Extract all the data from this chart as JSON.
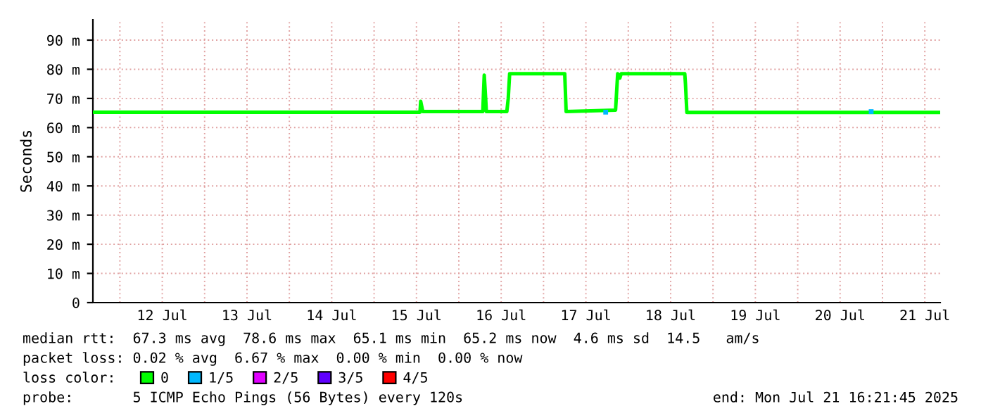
{
  "chart_data": {
    "type": "line",
    "ylabel": "Seconds",
    "x": [
      "2025-07-11T16:21",
      "2025-07-15T13:00",
      "2025-07-15T13:12",
      "2025-07-15T13:48",
      "2025-07-16T06:48",
      "2025-07-16T07:00",
      "2025-07-16T07:12",
      "2025-07-16T07:36",
      "2025-07-16T07:48",
      "2025-07-16T13:36",
      "2025-07-16T14:00",
      "2025-07-16T14:24",
      "2025-07-17T06:00",
      "2025-07-17T06:24",
      "2025-07-17T20:24",
      "2025-07-17T21:00",
      "2025-07-17T21:36",
      "2025-07-17T22:00",
      "2025-07-18T16:00",
      "2025-07-18T16:12",
      "2025-07-18T16:36",
      "2025-07-21T16:21"
    ],
    "series": [
      {
        "name": "0",
        "color": "#00ff00",
        "values": [
          65.3,
          65.3,
          69,
          65.5,
          65.5,
          72,
          78,
          70,
          65.5,
          65.5,
          70,
          78.5,
          78.5,
          65.5,
          66,
          78.5,
          77,
          78.5,
          78.5,
          75,
          65.2,
          65.2
        ]
      },
      {
        "name": "1/5",
        "type": "scatter",
        "marker": "square",
        "color": "#00b8ff",
        "x": [
          "2025-07-17T17:36",
          "2025-07-20T20:48"
        ],
        "values": [
          65.3,
          65.5
        ]
      },
      {
        "name": "2/5",
        "type": "scatter",
        "color": "#e000ff",
        "values": [
          null,
          null,
          null,
          null,
          null,
          null,
          null,
          null,
          null,
          null,
          null,
          null,
          null,
          null,
          null,
          null,
          null,
          null,
          null,
          null,
          null,
          null
        ]
      },
      {
        "name": "3/5",
        "type": "scatter",
        "color": "#6000ff",
        "values": [
          null,
          null,
          null,
          null,
          null,
          null,
          null,
          null,
          null,
          null,
          null,
          null,
          null,
          null,
          null,
          null,
          null,
          null,
          null,
          null,
          null,
          null
        ]
      },
      {
        "name": "4/5",
        "type": "scatter",
        "color": "#ff0000",
        "values": [
          null,
          null,
          null,
          null,
          null,
          null,
          null,
          null,
          null,
          null,
          null,
          null,
          null,
          null,
          null,
          null,
          null,
          null,
          null,
          null,
          null,
          null
        ]
      }
    ],
    "legend": "bottom",
    "legend_title": "loss color:",
    "xlim": [
      "2025-07-11T16:21",
      "2025-07-21T16:21"
    ],
    "xticks": [
      {
        "value": "2025-07-12T00:00",
        "label": null
      },
      {
        "value": "2025-07-12T12:00",
        "label": "12 Jul"
      },
      {
        "value": "2025-07-13T00:00",
        "label": null
      },
      {
        "value": "2025-07-13T12:00",
        "label": "13 Jul"
      },
      {
        "value": "2025-07-14T00:00",
        "label": null
      },
      {
        "value": "2025-07-14T12:00",
        "label": "14 Jul"
      },
      {
        "value": "2025-07-15T00:00",
        "label": null
      },
      {
        "value": "2025-07-15T12:00",
        "label": "15 Jul"
      },
      {
        "value": "2025-07-16T00:00",
        "label": null
      },
      {
        "value": "2025-07-16T12:00",
        "label": "16 Jul"
      },
      {
        "value": "2025-07-17T00:00",
        "label": null
      },
      {
        "value": "2025-07-17T12:00",
        "label": "17 Jul"
      },
      {
        "value": "2025-07-18T00:00",
        "label": null
      },
      {
        "value": "2025-07-18T12:00",
        "label": "18 Jul"
      },
      {
        "value": "2025-07-19T00:00",
        "label": null
      },
      {
        "value": "2025-07-19T12:00",
        "label": "19 Jul"
      },
      {
        "value": "2025-07-20T00:00",
        "label": null
      },
      {
        "value": "2025-07-20T12:00",
        "label": "20 Jul"
      },
      {
        "value": "2025-07-21T00:00",
        "label": null
      },
      {
        "value": "2025-07-21T12:00",
        "label": "21 Jul"
      }
    ],
    "ylim": [
      0,
      97
    ],
    "yticks": [
      0,
      {
        "value": 10,
        "label": "10 m"
      },
      {
        "value": 20,
        "label": "20 m"
      },
      {
        "value": 30,
        "label": "30 m"
      },
      {
        "value": 40,
        "label": "40 m"
      },
      {
        "value": 50,
        "label": "50 m"
      },
      {
        "value": 60,
        "label": "60 m"
      },
      {
        "value": 70,
        "label": "70 m"
      },
      {
        "value": 80,
        "label": "80 m"
      },
      {
        "value": 90,
        "label": "90 m"
      }
    ],
    "grid": true,
    "annotations": [
      "median rtt:  67.3 ms avg  78.6 ms max  65.1 ms min  65.2 ms now  4.6 ms sd  14.5   am/s",
      "packet loss: 0.02 % avg  6.67 % max  0.00 % min  0.00 % now",
      "probe:       5 ICMP Echo Pings (56 Bytes) every 120s",
      "end: Mon Jul 21 16:21:45 2025"
    ]
  }
}
